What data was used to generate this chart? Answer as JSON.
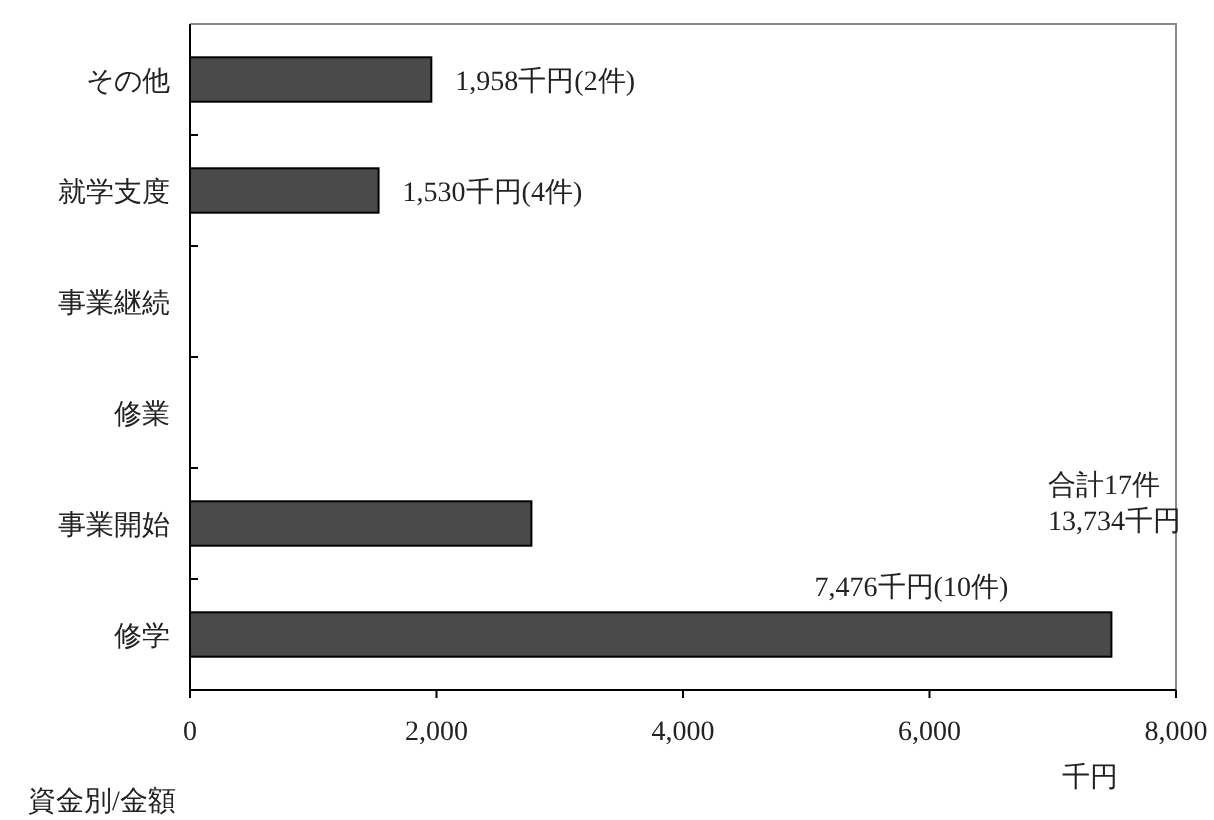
{
  "chart_data": {
    "type": "bar",
    "orientation": "horizontal",
    "categories": [
      "その他",
      "就学支度",
      "事業継続",
      "修業",
      "事業開始",
      "修学"
    ],
    "values": [
      1958,
      1530,
      0,
      0,
      2770,
      7476
    ],
    "value_labels": [
      "1,958千円(2件)",
      "1,530千円(4件)",
      null,
      null,
      null,
      "7,476千円(10件)"
    ],
    "color": "#4a4a4a",
    "xlim": [
      0,
      8000
    ],
    "xticks": [
      0,
      {
        "value": 2000,
        "label": "2,000"
      },
      {
        "value": 4000,
        "label": "4,000"
      },
      {
        "value": 6000,
        "label": "6,000"
      },
      {
        "value": 8000,
        "label": "8,000"
      }
    ],
    "xlabel": "千円",
    "annotations": [
      "合計17件\n13,734千円",
      "資金別/金額"
    ],
    "grid": false
  }
}
